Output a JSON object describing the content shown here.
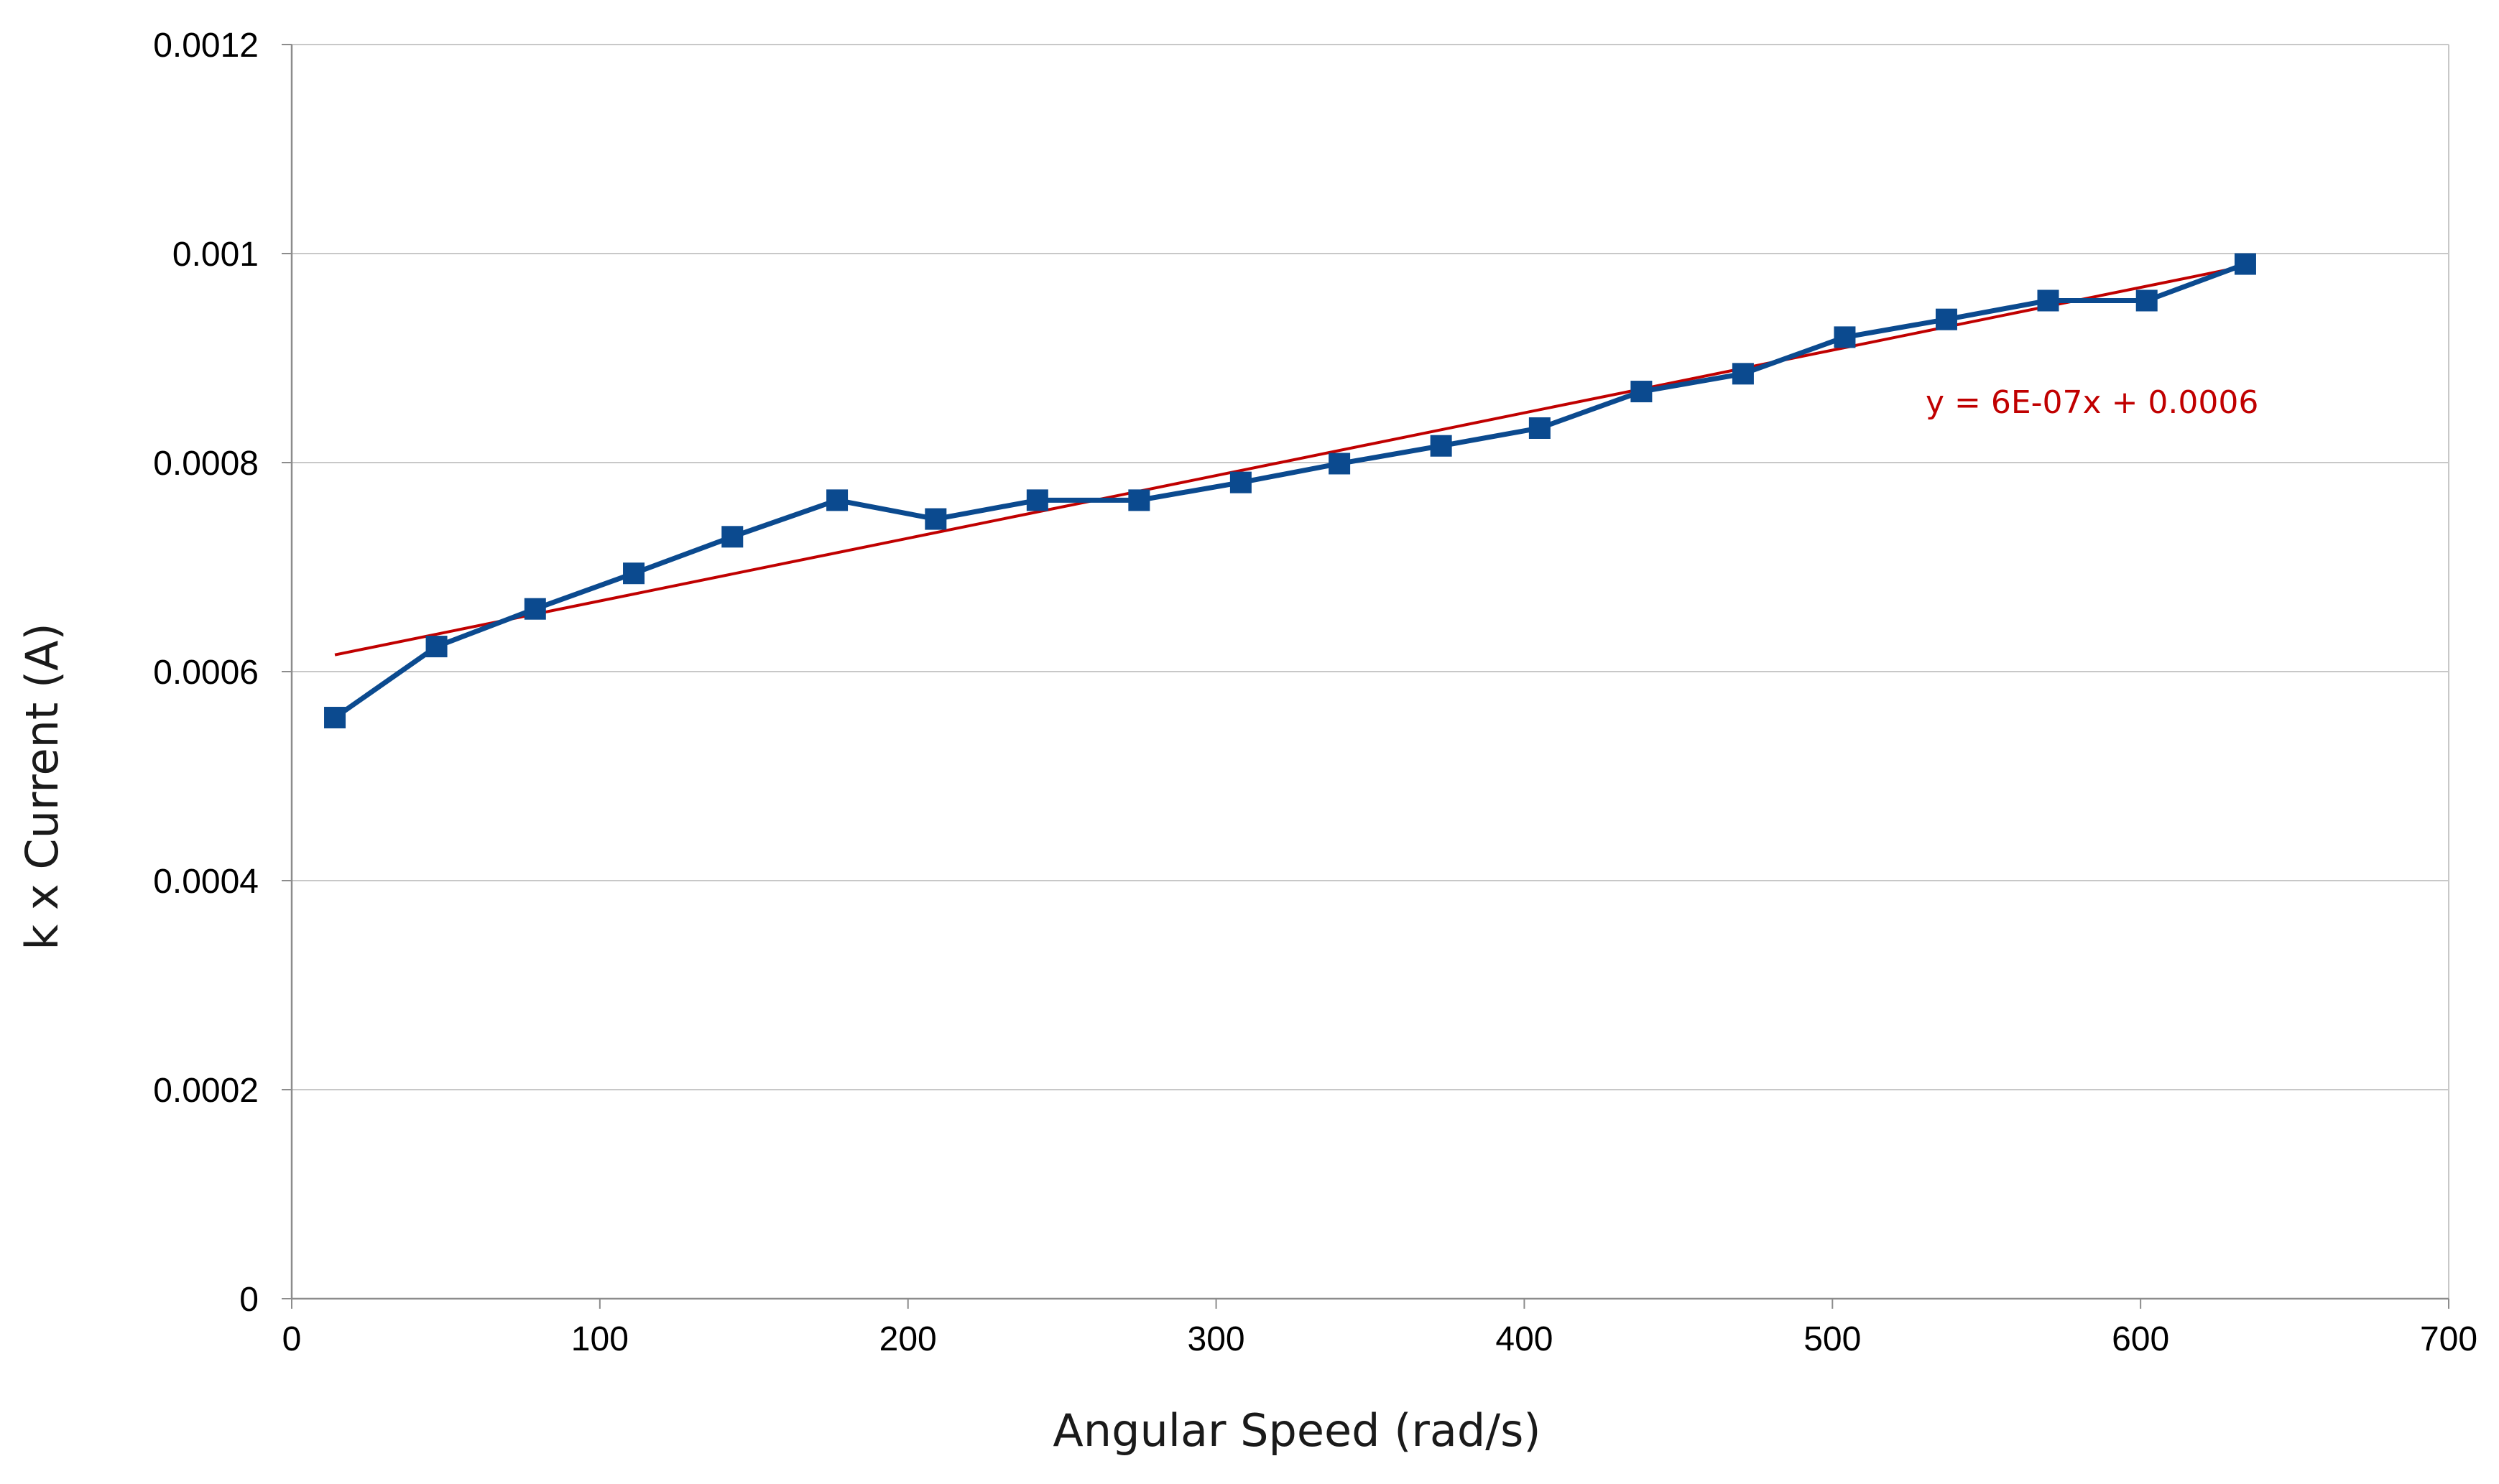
{
  "chart_data": {
    "type": "scatter",
    "xlabel": "Angular Speed (rad/s)",
    "ylabel": "k x Current (A)",
    "xlim": [
      0,
      700
    ],
    "ylim": [
      0,
      0.0012
    ],
    "x_ticks": [
      0,
      100,
      200,
      300,
      400,
      500,
      600,
      700
    ],
    "x_tick_labels": [
      "0",
      "100",
      "200",
      "300",
      "400",
      "500",
      "600",
      "700"
    ],
    "y_ticks": [
      0,
      0.0002,
      0.0004,
      0.0006,
      0.0008,
      0.001,
      0.0012
    ],
    "y_tick_labels": [
      "0",
      "0.0002",
      "0.0004",
      "0.0006",
      "0.0008",
      "0.001",
      "0.0012"
    ],
    "grid": "horizontal",
    "series": [
      {
        "color": "#0b4a8f",
        "marker": "square",
        "x": [
          14,
          47,
          79,
          111,
          143,
          177,
          209,
          242,
          275,
          308,
          340,
          373,
          405,
          438,
          471,
          504,
          537,
          570,
          602,
          634
        ],
        "y": [
          0.000556,
          0.000624,
          0.00066,
          0.000694,
          0.000729,
          0.000764,
          0.000746,
          0.000764,
          0.000764,
          0.000781,
          0.000799,
          0.000816,
          0.000833,
          0.000868,
          0.000885,
          0.00092,
          0.000937,
          0.000955,
          0.000955,
          0.00099
        ]
      }
    ],
    "trendline": {
      "color": "#c00000",
      "x": [
        14,
        634
      ],
      "y": [
        0.000616,
        0.000988
      ],
      "equation": "y = 6E-07x + 0.0006"
    }
  }
}
